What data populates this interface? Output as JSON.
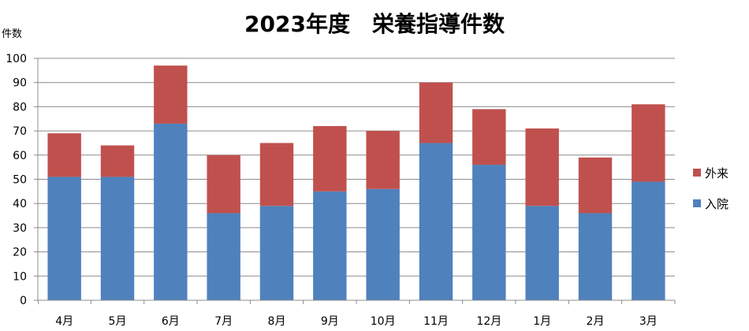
{
  "chart_data": {
    "type": "bar",
    "stacked": true,
    "title": "2023年度　栄養指導件数",
    "ylabel": "件数",
    "xlabel": "",
    "categories": [
      "4月",
      "5月",
      "6月",
      "7月",
      "8月",
      "9月",
      "10月",
      "11月",
      "12月",
      "1月",
      "2月",
      "3月"
    ],
    "ylim": [
      0,
      100
    ],
    "yticks": [
      0,
      10,
      20,
      30,
      40,
      50,
      60,
      70,
      80,
      90,
      100
    ],
    "grid": true,
    "legend_position": "right",
    "series": [
      {
        "name": "入院",
        "color": "#4f81bd",
        "values": [
          51,
          51,
          73,
          36,
          39,
          45,
          46,
          65,
          56,
          39,
          36,
          49
        ]
      },
      {
        "name": "外来",
        "color": "#c0504d",
        "values": [
          18,
          13,
          24,
          24,
          26,
          27,
          24,
          25,
          23,
          32,
          23,
          32
        ]
      }
    ],
    "legend_order": [
      "外来",
      "入院"
    ]
  }
}
